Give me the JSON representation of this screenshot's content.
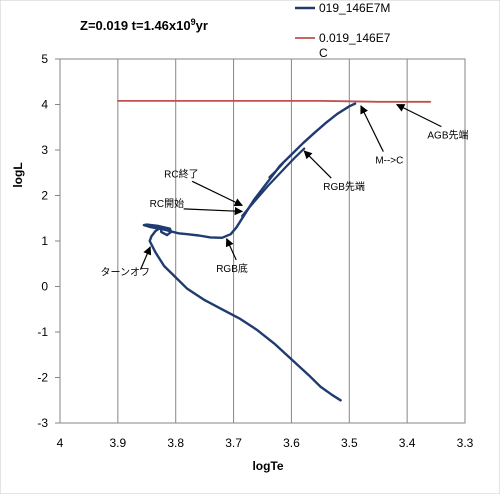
{
  "chart_data": {
    "type": "line",
    "title": "Z=0.019  t=1.46x10",
    "title_superscript": "9",
    "title_suffix": "yr",
    "xlabel": "logTe",
    "ylabel": "logL",
    "xlim": [
      4.0,
      3.3
    ],
    "x_reversed": true,
    "ylim": [
      -3,
      5
    ],
    "xticks": [
      4,
      3.9,
      3.8,
      3.7,
      3.6,
      3.5,
      3.4,
      3.3
    ],
    "xtick_labels": [
      "4",
      "3.9",
      "3.8",
      "3.7",
      "3.6",
      "3.5",
      "3.4",
      "3.3"
    ],
    "yticks": [
      5,
      4,
      3,
      2,
      1,
      0,
      -1,
      -2,
      -3
    ],
    "ytick_labels": [
      "5",
      "4",
      "3",
      "2",
      "1",
      "0",
      "-1",
      "-2",
      "-3"
    ],
    "grid": "vertical",
    "legend_position": "top-right",
    "series": [
      {
        "name": "019_146E7M",
        "color": "#1f3b70",
        "x": [
          3.515,
          3.53,
          3.55,
          3.57,
          3.6,
          3.63,
          3.66,
          3.69,
          3.72,
          3.75,
          3.78,
          3.8,
          3.82,
          3.835,
          3.845,
          3.842,
          3.835,
          3.825,
          3.825,
          3.815,
          3.808,
          3.81,
          3.83,
          3.85,
          3.855,
          3.845,
          3.832,
          3.82,
          3.805,
          3.795,
          3.78,
          3.76,
          3.74,
          3.72,
          3.705,
          3.695,
          3.685,
          3.675,
          3.665,
          3.65,
          3.635,
          3.62,
          3.6,
          3.58,
          3.56,
          3.54,
          3.52,
          3.5,
          3.49
        ],
        "y": [
          -2.5,
          -2.38,
          -2.2,
          -1.95,
          -1.6,
          -1.25,
          -0.95,
          -0.7,
          -0.5,
          -0.3,
          -0.05,
          0.2,
          0.45,
          0.75,
          1.0,
          1.1,
          1.22,
          1.3,
          1.2,
          1.13,
          1.2,
          1.27,
          1.33,
          1.36,
          1.35,
          1.31,
          1.28,
          1.25,
          1.2,
          1.17,
          1.15,
          1.12,
          1.08,
          1.07,
          1.15,
          1.3,
          1.5,
          1.7,
          1.9,
          2.15,
          2.4,
          2.65,
          2.9,
          3.15,
          3.38,
          3.6,
          3.8,
          3.96,
          4.02
        ]
      },
      {
        "name": "0.019_146E7\nC",
        "color": "#c0504d",
        "x": [
          3.9,
          3.85,
          3.8,
          3.75,
          3.7,
          3.65,
          3.6,
          3.55,
          3.5,
          3.45,
          3.4,
          3.36
        ],
        "y": [
          4.08,
          4.08,
          4.08,
          4.08,
          4.08,
          4.08,
          4.08,
          4.08,
          4.07,
          4.06,
          4.06,
          4.06
        ]
      }
    ],
    "extra_segments": [
      {
        "color": "#1f3b70",
        "x": [
          3.685,
          3.67,
          3.655,
          3.64,
          3.625,
          3.61,
          3.595,
          3.578
        ],
        "y": [
          1.55,
          1.78,
          2.0,
          2.22,
          2.42,
          2.62,
          2.82,
          3.03
        ]
      },
      {
        "color": "#1f3b70",
        "x": [
          3.638,
          3.626,
          3.615
        ],
        "y": [
          2.4,
          2.55,
          2.7
        ]
      }
    ],
    "annotations": [
      {
        "text": "RC終了",
        "text_x": 3.82,
        "text_y": 2.4,
        "arrow_x": 3.685,
        "arrow_y": 1.78
      },
      {
        "text": "RC開始",
        "text_x": 3.845,
        "text_y": 1.75,
        "arrow_x": 3.685,
        "arrow_y": 1.65
      },
      {
        "text": "ターンオフ",
        "text_x": 3.93,
        "text_y": 0.24,
        "arrow_x": 3.844,
        "arrow_y": 0.87
      },
      {
        "text": "RGB底",
        "text_x": 3.73,
        "text_y": 0.32,
        "arrow_x": 3.712,
        "arrow_y": 1.05
      },
      {
        "text": "RGB先端",
        "text_x": 3.545,
        "text_y": 2.12,
        "arrow_x": 3.578,
        "arrow_y": 2.98
      },
      {
        "text": "M-->C",
        "text_x": 3.455,
        "text_y": 2.7,
        "arrow_x": 3.48,
        "arrow_y": 3.97
      },
      {
        "text": "AGB先端",
        "text_x": 3.365,
        "text_y": 3.25,
        "arrow_x": 3.418,
        "arrow_y": 4.0
      }
    ]
  }
}
